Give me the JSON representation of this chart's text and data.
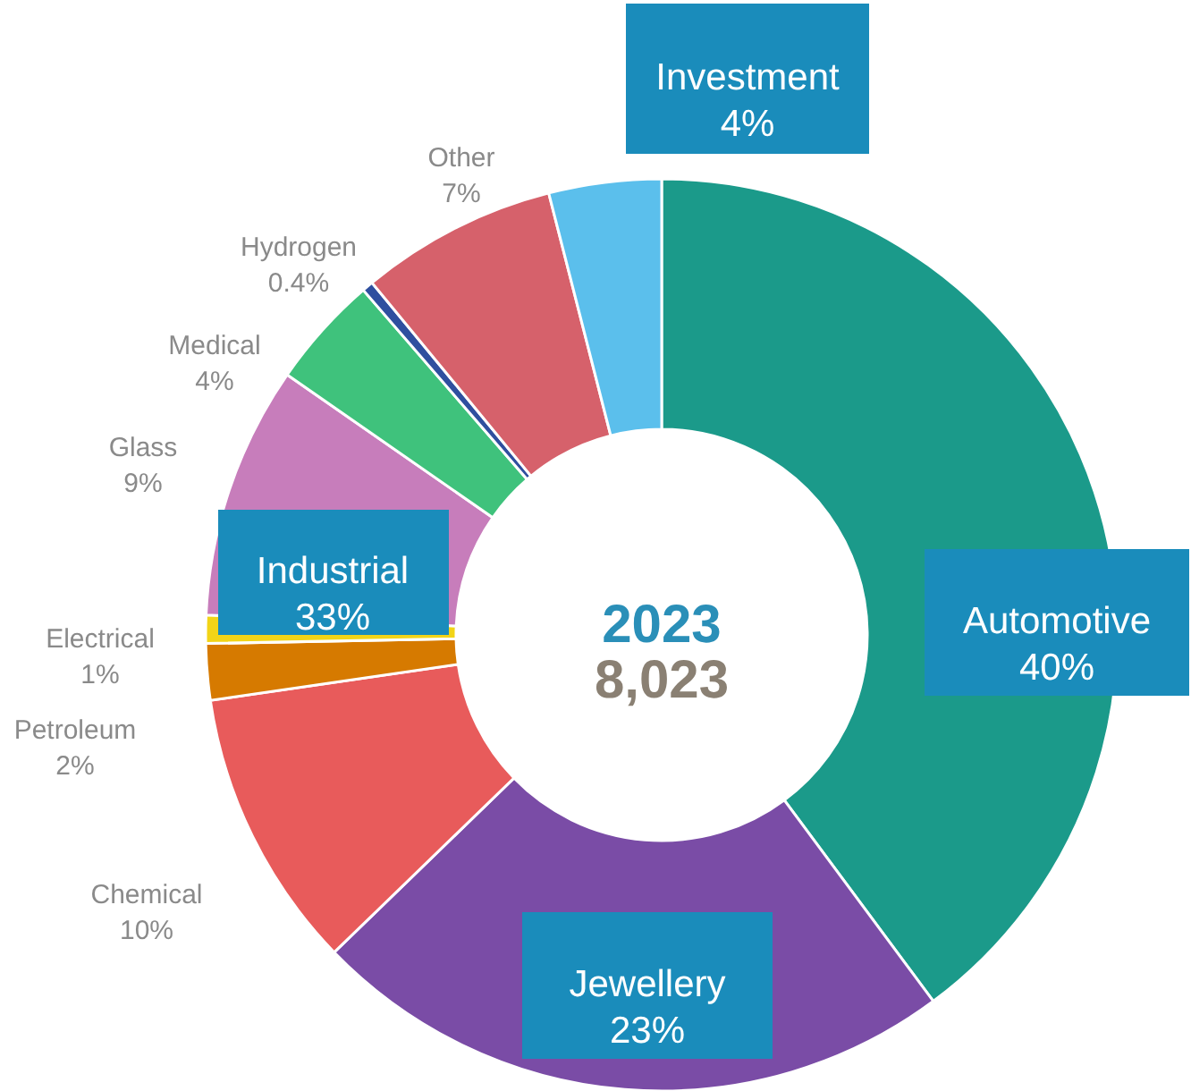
{
  "chart_data": {
    "type": "donut",
    "title": "2023",
    "subtitle": "8,023",
    "categories": [
      "Automotive",
      "Jewellery",
      "Chemical",
      "Petroleum",
      "Electrical",
      "Glass",
      "Medical",
      "Hydrogen",
      "Other",
      "Investment"
    ],
    "values": [
      40,
      23,
      10,
      2,
      1,
      9,
      4,
      0.4,
      7,
      4
    ],
    "value_labels": [
      "40%",
      "23%",
      "10%",
      "2%",
      "1%",
      "9%",
      "4%",
      "0.4%",
      "7%",
      "4%"
    ],
    "colors": [
      "#1b9a8a",
      "#7a4ca6",
      "#e85b5b",
      "#d67a00",
      "#f2d417",
      "#c77dbb",
      "#3fc27c",
      "#2f4f9f",
      "#d6616b",
      "#5bbfec"
    ],
    "annotations": [
      "Industrial\n33%"
    ]
  }
}
